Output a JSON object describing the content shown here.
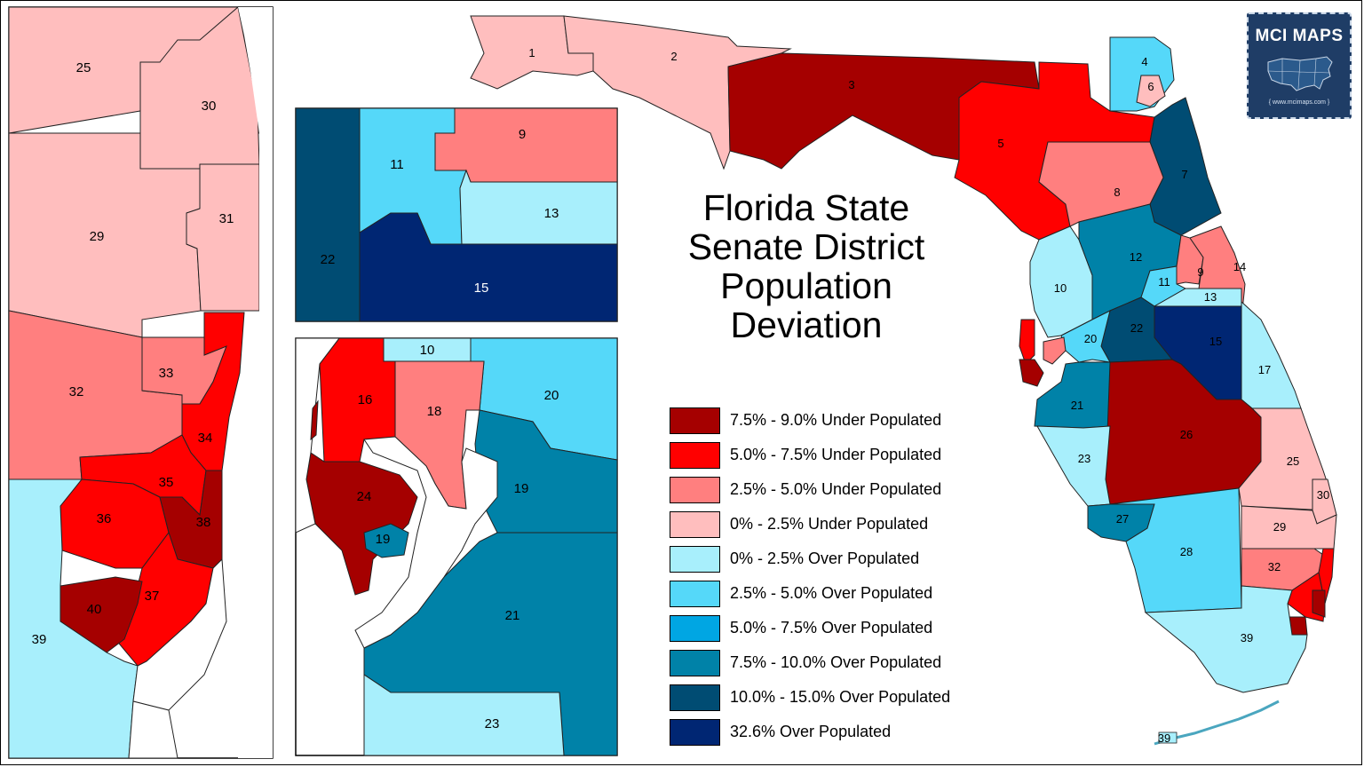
{
  "title": [
    "Florida State",
    "Senate District",
    "Population",
    "Deviation"
  ],
  "badge": {
    "name": "MCI MAPS",
    "url": "{ www.mcimaps.com }"
  },
  "legend": [
    {
      "label": "7.5% - 9.0% Under Populated",
      "color": "#a50000"
    },
    {
      "label": "5.0% - 7.5% Under Populated",
      "color": "#ff0000"
    },
    {
      "label": "2.5% - 5.0% Under Populated",
      "color": "#ff7f7f"
    },
    {
      "label": "0% - 2.5% Under Populated",
      "color": "#ffbebe"
    },
    {
      "label": "0% - 2.5% Over Populated",
      "color": "#a8effc"
    },
    {
      "label": "2.5% - 5.0% Over Populated",
      "color": "#55d8f9"
    },
    {
      "label": "5.0% - 7.5% Over Populated",
      "color": "#00a6e3"
    },
    {
      "label": "7.5% - 10.0% Over Populated",
      "color": "#0082a8"
    },
    {
      "label": "10.0% - 15.0% Over Populated",
      "color": "#004c73"
    },
    {
      "label": "32.6% Over Populated",
      "color": "#002673"
    }
  ],
  "district_labels": {
    "main": [
      "1",
      "2",
      "3",
      "4",
      "6",
      "5",
      "7",
      "8",
      "12",
      "9",
      "14",
      "10",
      "11",
      "13",
      "22",
      "15",
      "20",
      "17",
      "21",
      "26",
      "25",
      "23",
      "30",
      "27",
      "29",
      "28",
      "32",
      "39",
      "39"
    ],
    "inset_south": [
      "25",
      "30",
      "31",
      "29",
      "33",
      "32",
      "34",
      "35",
      "36",
      "38",
      "37",
      "40",
      "39"
    ],
    "inset_central": [
      "9",
      "11",
      "13",
      "22",
      "15"
    ],
    "inset_tampa": [
      "10",
      "20",
      "16",
      "18",
      "24",
      "19",
      "19",
      "21",
      "23"
    ]
  }
}
